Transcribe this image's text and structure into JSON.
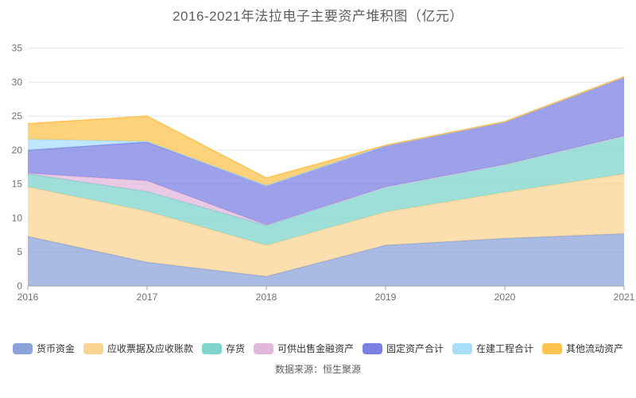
{
  "title": "2016-2021年法拉电子主要资产堆积图（亿元）",
  "source": "数据来源：恒生聚源",
  "chart_data": {
    "type": "area",
    "stacked": true,
    "title": "2016-2021年法拉电子主要资产堆积图（亿元）",
    "x": [
      2016,
      2017,
      2018,
      2019,
      2020,
      2021
    ],
    "xtick_labels": [
      "2016",
      "2017",
      "2018",
      "2019",
      "2020",
      "2021"
    ],
    "ytick_labels": [
      "0",
      "5",
      "10",
      "15",
      "20",
      "25",
      "30",
      "35"
    ],
    "ylim": [
      0,
      35
    ],
    "grid": true,
    "legend_position": "bottom",
    "unit": "亿元",
    "series": [
      {
        "name": "货币资金",
        "color": "#8CA3D9",
        "values": [
          7.3,
          3.5,
          1.4,
          6.0,
          7.0,
          7.7
        ]
      },
      {
        "name": "应收票据及应收账款",
        "color": "#FAD493",
        "values": [
          7.3,
          7.5,
          4.6,
          4.9,
          6.8,
          8.8
        ]
      },
      {
        "name": "存货",
        "color": "#7FD4CD",
        "values": [
          1.9,
          2.9,
          2.9,
          3.7,
          4.1,
          5.6
        ]
      },
      {
        "name": "可供出售金融资产",
        "color": "#E3B7DC",
        "values": [
          0.1,
          1.6,
          0.1,
          0.0,
          0.0,
          0.0
        ]
      },
      {
        "name": "固定资产合计",
        "color": "#7B81E3",
        "values": [
          3.4,
          5.7,
          5.8,
          6.1,
          6.3,
          8.7
        ]
      },
      {
        "name": "在建工程合计",
        "color": "#A9DEF8",
        "values": [
          1.6,
          0.1,
          0.0,
          0.0,
          0.0,
          0.0
        ]
      },
      {
        "name": "其他流动资产",
        "color": "#FBC34F",
        "values": [
          2.3,
          3.7,
          1.1,
          0.0,
          0.0,
          0.0
        ]
      }
    ]
  }
}
